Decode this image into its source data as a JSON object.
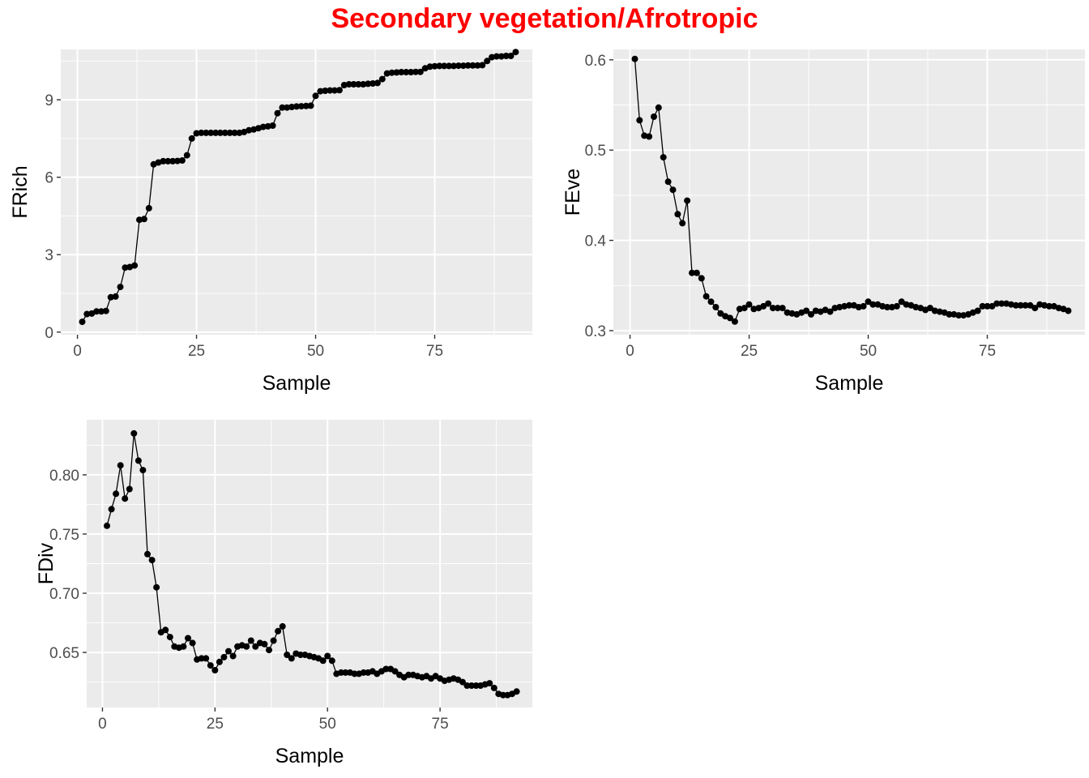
{
  "title": "Secondary vegetation/Afrotropic",
  "colors": {
    "title": "#ff0000",
    "panel": "#ebebeb",
    "grid": "#ffffff",
    "series": "#000000",
    "tick_text": "#4d4d4d"
  },
  "chart_data": [
    {
      "type": "line",
      "id": "frich",
      "xlabel": "Sample",
      "ylabel": "FRich",
      "xlim": [
        -3.5,
        95.5
      ],
      "ylim": [
        -0.1,
        10.95
      ],
      "xticks": [
        0,
        25,
        50,
        75
      ],
      "xtick_labels": [
        "0",
        "25",
        "50",
        "75"
      ],
      "yticks": [
        0,
        3,
        6,
        9
      ],
      "ytick_labels": [
        "0",
        "3",
        "6",
        "9"
      ],
      "grid": true,
      "points": true,
      "x": [
        1,
        2,
        3,
        4,
        5,
        6,
        7,
        8,
        9,
        10,
        11,
        12,
        13,
        14,
        15,
        16,
        17,
        18,
        19,
        20,
        21,
        22,
        23,
        24,
        25,
        26,
        27,
        28,
        29,
        30,
        31,
        32,
        33,
        34,
        35,
        36,
        37,
        38,
        39,
        40,
        41,
        42,
        43,
        44,
        45,
        46,
        47,
        48,
        49,
        50,
        51,
        52,
        53,
        54,
        55,
        56,
        57,
        58,
        59,
        60,
        61,
        62,
        63,
        64,
        65,
        66,
        67,
        68,
        69,
        70,
        71,
        72,
        73,
        74,
        75,
        76,
        77,
        78,
        79,
        80,
        81,
        82,
        83,
        84,
        85,
        86,
        87,
        88,
        89,
        90,
        91,
        92
      ],
      "y": [
        0.4,
        0.7,
        0.72,
        0.8,
        0.8,
        0.82,
        1.35,
        1.38,
        1.75,
        2.5,
        2.52,
        2.58,
        4.35,
        4.38,
        4.8,
        6.5,
        6.57,
        6.62,
        6.62,
        6.62,
        6.63,
        6.65,
        6.85,
        7.5,
        7.7,
        7.72,
        7.72,
        7.72,
        7.72,
        7.72,
        7.72,
        7.72,
        7.72,
        7.72,
        7.75,
        7.82,
        7.85,
        7.9,
        7.95,
        7.97,
        8.0,
        8.48,
        8.7,
        8.7,
        8.72,
        8.74,
        8.75,
        8.76,
        8.77,
        9.15,
        9.33,
        9.35,
        9.36,
        9.36,
        9.37,
        9.57,
        9.6,
        9.6,
        9.6,
        9.6,
        9.62,
        9.63,
        9.65,
        9.8,
        10.02,
        10.05,
        10.06,
        10.07,
        10.07,
        10.07,
        10.08,
        10.08,
        10.22,
        10.28,
        10.3,
        10.31,
        10.31,
        10.31,
        10.31,
        10.32,
        10.32,
        10.33,
        10.33,
        10.33,
        10.34,
        10.5,
        10.65,
        10.68,
        10.68,
        10.7,
        10.7,
        10.85
      ]
    },
    {
      "type": "line",
      "id": "feve",
      "xlabel": "Sample",
      "ylabel": "FEve",
      "xlim": [
        -3.5,
        95.5
      ],
      "ylim": [
        0.2955,
        0.6115
      ],
      "xticks": [
        0,
        25,
        50,
        75
      ],
      "xtick_labels": [
        "0",
        "25",
        "50",
        "75"
      ],
      "yticks": [
        0.3,
        0.4,
        0.5,
        0.6
      ],
      "ytick_labels": [
        "0.3",
        "0.4",
        "0.5",
        "0.6"
      ],
      "grid": true,
      "points": true,
      "x": [
        1,
        2,
        3,
        4,
        5,
        6,
        7,
        8,
        9,
        10,
        11,
        12,
        13,
        14,
        15,
        16,
        17,
        18,
        19,
        20,
        21,
        22,
        23,
        24,
        25,
        26,
        27,
        28,
        29,
        30,
        31,
        32,
        33,
        34,
        35,
        36,
        37,
        38,
        39,
        40,
        41,
        42,
        43,
        44,
        45,
        46,
        47,
        48,
        49,
        50,
        51,
        52,
        53,
        54,
        55,
        56,
        57,
        58,
        59,
        60,
        61,
        62,
        63,
        64,
        65,
        66,
        67,
        68,
        69,
        70,
        71,
        72,
        73,
        74,
        75,
        76,
        77,
        78,
        79,
        80,
        81,
        82,
        83,
        84,
        85,
        86,
        87,
        88,
        89,
        90,
        91,
        92
      ],
      "y": [
        0.601,
        0.533,
        0.516,
        0.515,
        0.537,
        0.547,
        0.492,
        0.465,
        0.456,
        0.429,
        0.419,
        0.444,
        0.364,
        0.364,
        0.358,
        0.338,
        0.332,
        0.326,
        0.319,
        0.316,
        0.314,
        0.31,
        0.324,
        0.325,
        0.329,
        0.324,
        0.325,
        0.327,
        0.33,
        0.325,
        0.325,
        0.325,
        0.32,
        0.319,
        0.318,
        0.32,
        0.322,
        0.318,
        0.322,
        0.321,
        0.323,
        0.321,
        0.325,
        0.326,
        0.327,
        0.328,
        0.328,
        0.326,
        0.327,
        0.332,
        0.329,
        0.329,
        0.327,
        0.326,
        0.326,
        0.327,
        0.332,
        0.329,
        0.328,
        0.326,
        0.325,
        0.323,
        0.325,
        0.322,
        0.321,
        0.32,
        0.318,
        0.318,
        0.317,
        0.317,
        0.318,
        0.32,
        0.322,
        0.327,
        0.327,
        0.327,
        0.33,
        0.33,
        0.33,
        0.329,
        0.328,
        0.328,
        0.328,
        0.328,
        0.325,
        0.329,
        0.328,
        0.327,
        0.327,
        0.325,
        0.324,
        0.322
      ]
    },
    {
      "type": "line",
      "id": "fdiv",
      "xlabel": "Sample",
      "ylabel": "FDiv",
      "xlim": [
        -3.5,
        95.5
      ],
      "ylim": [
        0.6035,
        0.8465
      ],
      "xticks": [
        0,
        25,
        50,
        75
      ],
      "xtick_labels": [
        "0",
        "25",
        "50",
        "75"
      ],
      "yticks": [
        0.65,
        0.7,
        0.75,
        0.8
      ],
      "ytick_labels": [
        "0.65",
        "0.70",
        "0.75",
        "0.80"
      ],
      "grid": true,
      "points": true,
      "x": [
        1,
        2,
        3,
        4,
        5,
        6,
        7,
        8,
        9,
        10,
        11,
        12,
        13,
        14,
        15,
        16,
        17,
        18,
        19,
        20,
        21,
        22,
        23,
        24,
        25,
        26,
        27,
        28,
        29,
        30,
        31,
        32,
        33,
        34,
        35,
        36,
        37,
        38,
        39,
        40,
        41,
        42,
        43,
        44,
        45,
        46,
        47,
        48,
        49,
        50,
        51,
        52,
        53,
        54,
        55,
        56,
        57,
        58,
        59,
        60,
        61,
        62,
        63,
        64,
        65,
        66,
        67,
        68,
        69,
        70,
        71,
        72,
        73,
        74,
        75,
        76,
        77,
        78,
        79,
        80,
        81,
        82,
        83,
        84,
        85,
        86,
        87,
        88,
        89,
        90,
        91,
        92
      ],
      "y": [
        0.757,
        0.771,
        0.784,
        0.808,
        0.78,
        0.788,
        0.835,
        0.812,
        0.804,
        0.733,
        0.728,
        0.705,
        0.667,
        0.669,
        0.663,
        0.655,
        0.654,
        0.655,
        0.662,
        0.658,
        0.644,
        0.645,
        0.645,
        0.639,
        0.635,
        0.642,
        0.646,
        0.651,
        0.647,
        0.655,
        0.656,
        0.655,
        0.66,
        0.655,
        0.658,
        0.657,
        0.652,
        0.66,
        0.668,
        0.672,
        0.648,
        0.645,
        0.649,
        0.648,
        0.648,
        0.647,
        0.646,
        0.645,
        0.643,
        0.647,
        0.643,
        0.632,
        0.633,
        0.633,
        0.633,
        0.632,
        0.632,
        0.633,
        0.633,
        0.634,
        0.632,
        0.634,
        0.636,
        0.636,
        0.634,
        0.631,
        0.629,
        0.631,
        0.631,
        0.63,
        0.629,
        0.63,
        0.628,
        0.63,
        0.628,
        0.626,
        0.627,
        0.628,
        0.627,
        0.625,
        0.622,
        0.622,
        0.622,
        0.622,
        0.623,
        0.624,
        0.62,
        0.615,
        0.614,
        0.614,
        0.615,
        0.617
      ]
    }
  ]
}
